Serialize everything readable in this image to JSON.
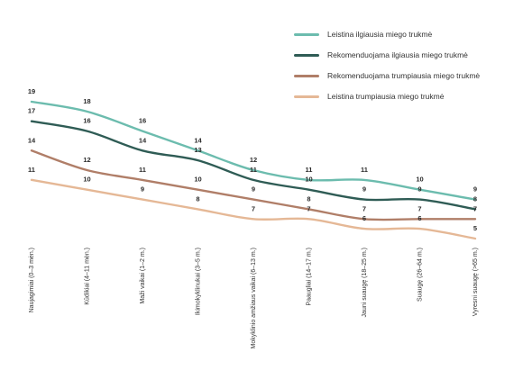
{
  "chart_data": {
    "type": "line",
    "categories": [
      "Naujagimiai (0–3 mėn.)",
      "Kūdikiai (4–11 mėn.)",
      "Maži vaikai (1–2 m.)",
      "Ikimokyklinukai (3–5 m.)",
      "Mokyklinio amžiaus vaikai (6–13 m.)",
      "Paaugliai (14–17 m.)",
      "Jauni suaugę (18–25 m.)",
      "Suaugę (26–64 m.)",
      "Vyresni suaugę (>65 m.)"
    ],
    "series": [
      {
        "name": "Leistina ilgiausia miego trukmė",
        "color": "#6cbcae",
        "values": [
          19,
          18,
          16,
          14,
          12,
          11,
          11,
          10,
          9
        ]
      },
      {
        "name": "Rekomenduojama ilgiausia miego trukmė",
        "color": "#2f5c55",
        "values": [
          17,
          16,
          14,
          13,
          11,
          10,
          9,
          9,
          8
        ]
      },
      {
        "name": "Rekomenduojama trumpiausia miego trukmė",
        "color": "#b07e68",
        "values": [
          14,
          12,
          11,
          10,
          9,
          8,
          7,
          7,
          7
        ]
      },
      {
        "name": "Leistina trumpiausia miego trukmė",
        "color": "#e5b896",
        "values": [
          11,
          10,
          9,
          8,
          7,
          7,
          6,
          6,
          5
        ]
      }
    ],
    "legend_position": "top-right",
    "grid": false
  }
}
